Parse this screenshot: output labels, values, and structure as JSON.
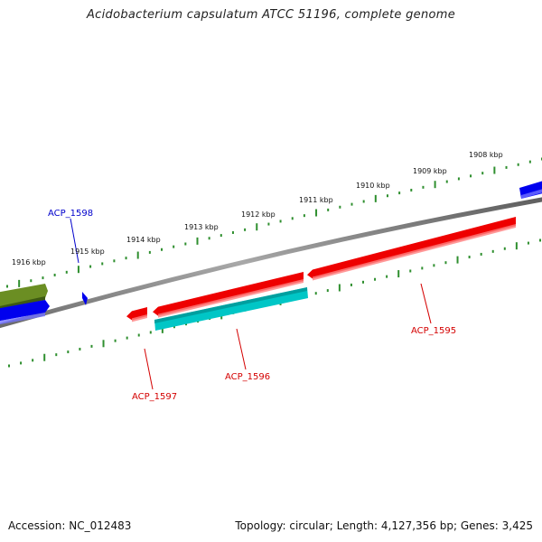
{
  "title": "Acidobacterium capsulatum ATCC 51196, complete genome",
  "colors": {
    "backbone": "#888888",
    "tick": "#2f8f2f",
    "forward_gene": "#ee0000",
    "reverse_gene": "#00c6c6",
    "partial_olive": "#6b8e23",
    "partial_blue": "#0000ee",
    "gene_label_red": "#d40000",
    "gene_label_blue": "#0000cc"
  },
  "scale_labels": [
    "1908 kbp",
    "1909 kbp",
    "1910 kbp",
    "1911 kbp",
    "1912 kbp",
    "1913 kbp",
    "1914 kbp",
    "1915 kbp",
    "1916 kbp"
  ],
  "genes": [
    {
      "label": "ACP_1595",
      "strand": "forward",
      "color_name": "red"
    },
    {
      "label": "ACP_1596",
      "strand": "reverse",
      "color_name": "cyan"
    },
    {
      "label": "ACP_1597",
      "strand": "forward",
      "color_name": "red"
    },
    {
      "label": "ACP_1598",
      "strand": "forward",
      "color_name": "blue"
    }
  ],
  "footer": {
    "accession": "Accession: NC_012483",
    "summary": "Topology: circular; Length: 4,127,356 bp; Genes: 3,425"
  }
}
